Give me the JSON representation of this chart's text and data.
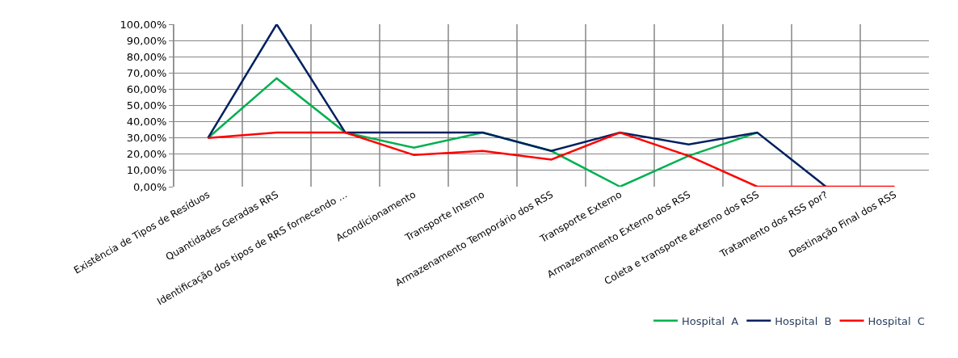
{
  "chart_data": {
    "type": "line",
    "categories": [
      "Existência de Tipos de Resíduos",
      "Quantidades Geradas RRS",
      "Identificação dos tipos de RRS fornecendo ...",
      "Acondicionamento",
      "Transporte Interno",
      "Armazenamento Temporário dos RSS",
      "Transporte Externo",
      "Armazenamento Externo dos RSS",
      "Coleta e transporte externo dos RSS",
      "Tratamento dos RSS por?",
      "Destinação Final dos RSS"
    ],
    "series": [
      {
        "name": "Hospital  A",
        "color": "#00b050",
        "values": [
          30,
          66.7,
          33.3,
          24,
          33.3,
          22,
          0,
          19,
          33.3,
          null,
          null
        ]
      },
      {
        "name": "Hospital  B",
        "color": "#002060",
        "values": [
          30,
          100,
          33.3,
          33.3,
          33.3,
          22,
          33.3,
          26,
          33.3,
          0,
          null
        ]
      },
      {
        "name": "Hospital  C",
        "color": "#ff0000",
        "values": [
          30,
          33.3,
          33.3,
          19.5,
          22,
          16.7,
          33.3,
          19,
          0,
          0,
          0
        ]
      }
    ],
    "ylim": [
      0,
      100
    ],
    "yticks": [
      {
        "value": 0,
        "label": "0,00%"
      },
      {
        "value": 10,
        "label": "10,00%"
      },
      {
        "value": 20,
        "label": "20,00%"
      },
      {
        "value": 30,
        "label": "30,00%"
      },
      {
        "value": 40,
        "label": "40,00%"
      },
      {
        "value": 50,
        "label": "50,00%"
      },
      {
        "value": 60,
        "label": "60,00%"
      },
      {
        "value": 70,
        "label": "70,00%"
      },
      {
        "value": 80,
        "label": "80,00%"
      },
      {
        "value": 90,
        "label": "90,00%"
      },
      {
        "value": 100,
        "label": "100,00%"
      }
    ],
    "grid": true,
    "legend": "bottom right",
    "marker": "none",
    "line_style": "solid"
  }
}
